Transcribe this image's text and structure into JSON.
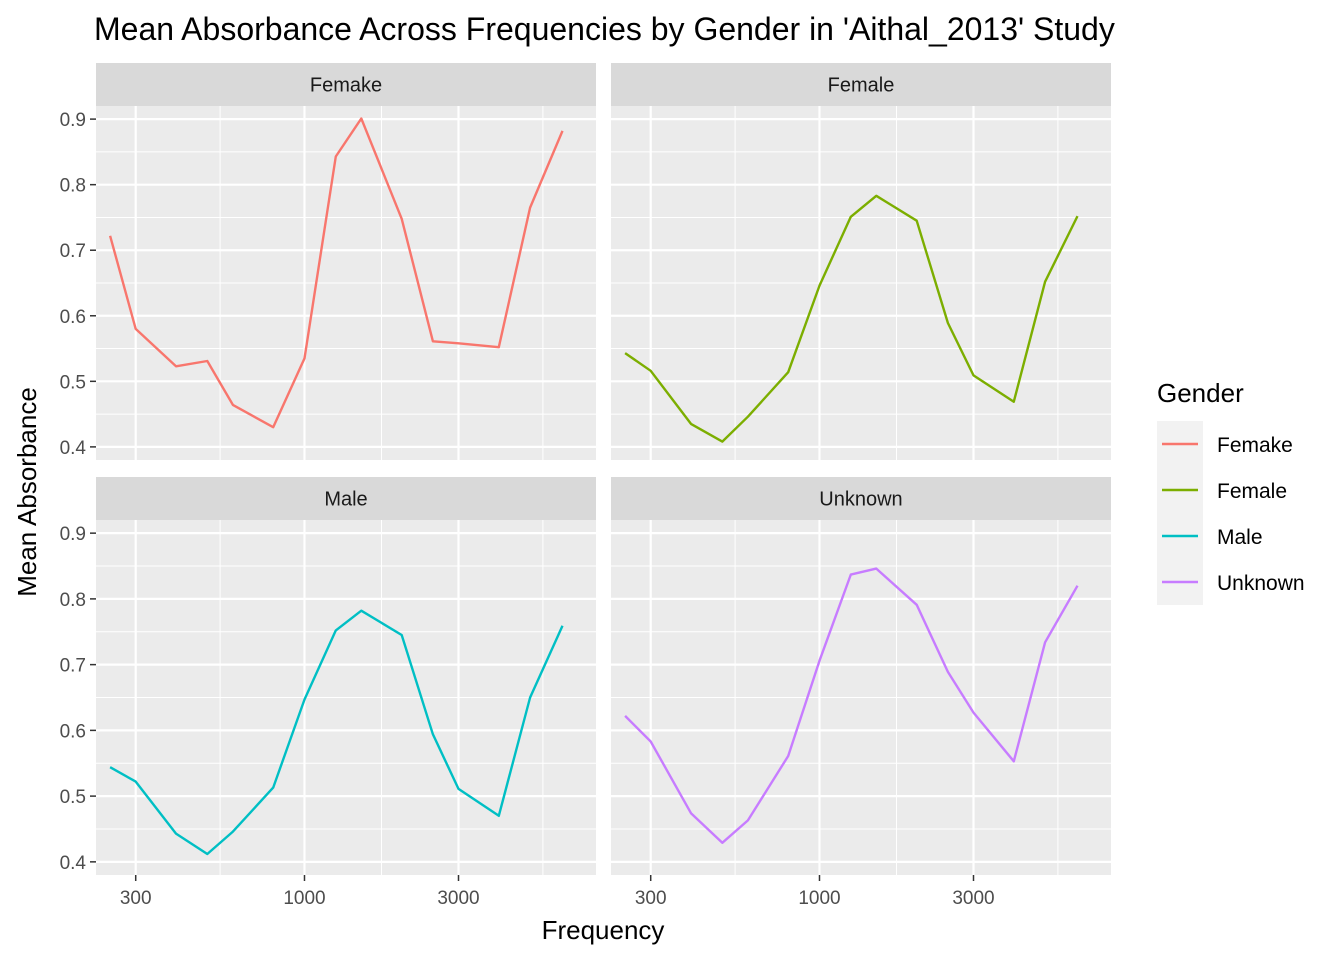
{
  "chart_data": {
    "type": "line",
    "title": "Mean Absorbance Across Frequencies by Gender in 'Aithal_2013' Study",
    "xlabel": "Frequency",
    "ylabel": "Mean Absorbance",
    "x_scale": "log10",
    "xlim": [
      226,
      8000
    ],
    "ylim": [
      0.38,
      0.92
    ],
    "x_ticks": [
      300,
      1000,
      3000
    ],
    "x_tick_labels": [
      "300",
      "1000",
      "3000"
    ],
    "y_ticks": [
      0.4,
      0.5,
      0.6,
      0.7,
      0.8,
      0.9
    ],
    "y_tick_labels": [
      "0.4",
      "0.5",
      "0.6",
      "0.7",
      "0.8",
      "0.9"
    ],
    "grid": true,
    "facets": [
      "Femake",
      "Female",
      "Male",
      "Unknown"
    ],
    "legend": {
      "title": "Gender",
      "position": "right"
    },
    "series": [
      {
        "name": "Femake",
        "color": "#F8766D",
        "x": [
          250,
          300,
          400,
          500,
          600,
          800,
          1000,
          1250,
          1500,
          2000,
          2500,
          3000,
          4000,
          5000,
          6300
        ],
        "y": [
          0.722,
          0.58,
          0.523,
          0.531,
          0.464,
          0.43,
          0.535,
          0.843,
          0.901,
          0.748,
          0.561,
          0.558,
          0.552,
          0.765,
          0.882
        ]
      },
      {
        "name": "Female",
        "color": "#7CAE00",
        "x": [
          250,
          300,
          400,
          500,
          600,
          800,
          1000,
          1250,
          1500,
          2000,
          2500,
          3000,
          4000,
          5000,
          6300
        ],
        "y": [
          0.543,
          0.516,
          0.435,
          0.408,
          0.446,
          0.514,
          0.646,
          0.751,
          0.783,
          0.745,
          0.589,
          0.509,
          0.469,
          0.652,
          0.752
        ]
      },
      {
        "name": "Male",
        "color": "#00BFC4",
        "x": [
          250,
          300,
          400,
          500,
          600,
          800,
          1000,
          1250,
          1500,
          2000,
          2500,
          3000,
          4000,
          5000,
          6300
        ],
        "y": [
          0.544,
          0.522,
          0.443,
          0.412,
          0.446,
          0.513,
          0.647,
          0.752,
          0.782,
          0.745,
          0.594,
          0.511,
          0.47,
          0.65,
          0.759
        ]
      },
      {
        "name": "Unknown",
        "color": "#C77CFF",
        "x": [
          250,
          300,
          400,
          500,
          600,
          800,
          1000,
          1250,
          1500,
          2000,
          2500,
          3000,
          4000,
          5000,
          6300
        ],
        "y": [
          0.622,
          0.583,
          0.474,
          0.429,
          0.463,
          0.561,
          0.706,
          0.837,
          0.846,
          0.791,
          0.689,
          0.627,
          0.553,
          0.734,
          0.82
        ]
      }
    ]
  }
}
